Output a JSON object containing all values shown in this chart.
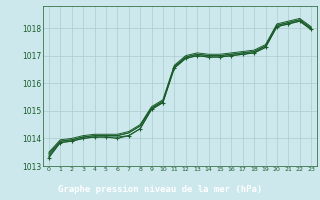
{
  "title": "Graphe pression niveau de la mer (hPa)",
  "bg_color": "#cce8ec",
  "grid_color": "#aacccc",
  "line_color": "#1a5c2a",
  "label_bg": "#2d6e3e",
  "xlim": [
    -0.5,
    23.5
  ],
  "ylim": [
    1013.0,
    1018.8
  ],
  "yticks": [
    1013,
    1014,
    1015,
    1016,
    1017,
    1018
  ],
  "xticks": [
    0,
    1,
    2,
    3,
    4,
    5,
    6,
    7,
    8,
    9,
    10,
    11,
    12,
    13,
    14,
    15,
    16,
    17,
    18,
    19,
    20,
    21,
    22,
    23
  ],
  "lines": [
    [
      1013.35,
      1013.85,
      1013.9,
      1014.0,
      1014.05,
      1014.05,
      1014.05,
      1014.1,
      1014.35,
      1015.05,
      1015.3,
      1016.55,
      1016.9,
      1017.0,
      1016.95,
      1016.95,
      1017.0,
      1017.05,
      1017.1,
      1017.3,
      1018.05,
      1018.15,
      1018.25,
      1017.95
    ],
    [
      1013.4,
      1013.9,
      1013.95,
      1014.05,
      1014.1,
      1014.1,
      1014.1,
      1014.2,
      1014.45,
      1015.1,
      1015.35,
      1016.6,
      1016.95,
      1017.05,
      1017.0,
      1017.0,
      1017.05,
      1017.1,
      1017.15,
      1017.35,
      1018.1,
      1018.2,
      1018.3,
      1018.0
    ],
    [
      1013.45,
      1013.9,
      1013.95,
      1014.05,
      1014.1,
      1014.1,
      1014.1,
      1014.2,
      1014.45,
      1015.1,
      1015.35,
      1016.6,
      1016.95,
      1017.05,
      1017.0,
      1017.0,
      1017.05,
      1017.1,
      1017.15,
      1017.35,
      1018.1,
      1018.2,
      1018.3,
      1018.0
    ],
    [
      1013.5,
      1013.95,
      1014.0,
      1014.1,
      1014.15,
      1014.15,
      1014.15,
      1014.25,
      1014.5,
      1015.15,
      1015.4,
      1016.65,
      1017.0,
      1017.1,
      1017.05,
      1017.05,
      1017.1,
      1017.15,
      1017.2,
      1017.4,
      1018.15,
      1018.25,
      1018.35,
      1018.05
    ]
  ],
  "marker_y": [
    1013.3,
    1013.85,
    1013.9,
    1014.0,
    1014.05,
    1014.05,
    1014.0,
    1014.1,
    1014.35,
    1015.05,
    1015.3,
    1016.55,
    1016.9,
    1017.0,
    1016.95,
    1016.95,
    1017.0,
    1017.05,
    1017.1,
    1017.3,
    1018.05,
    1018.15,
    1018.25,
    1017.95
  ]
}
